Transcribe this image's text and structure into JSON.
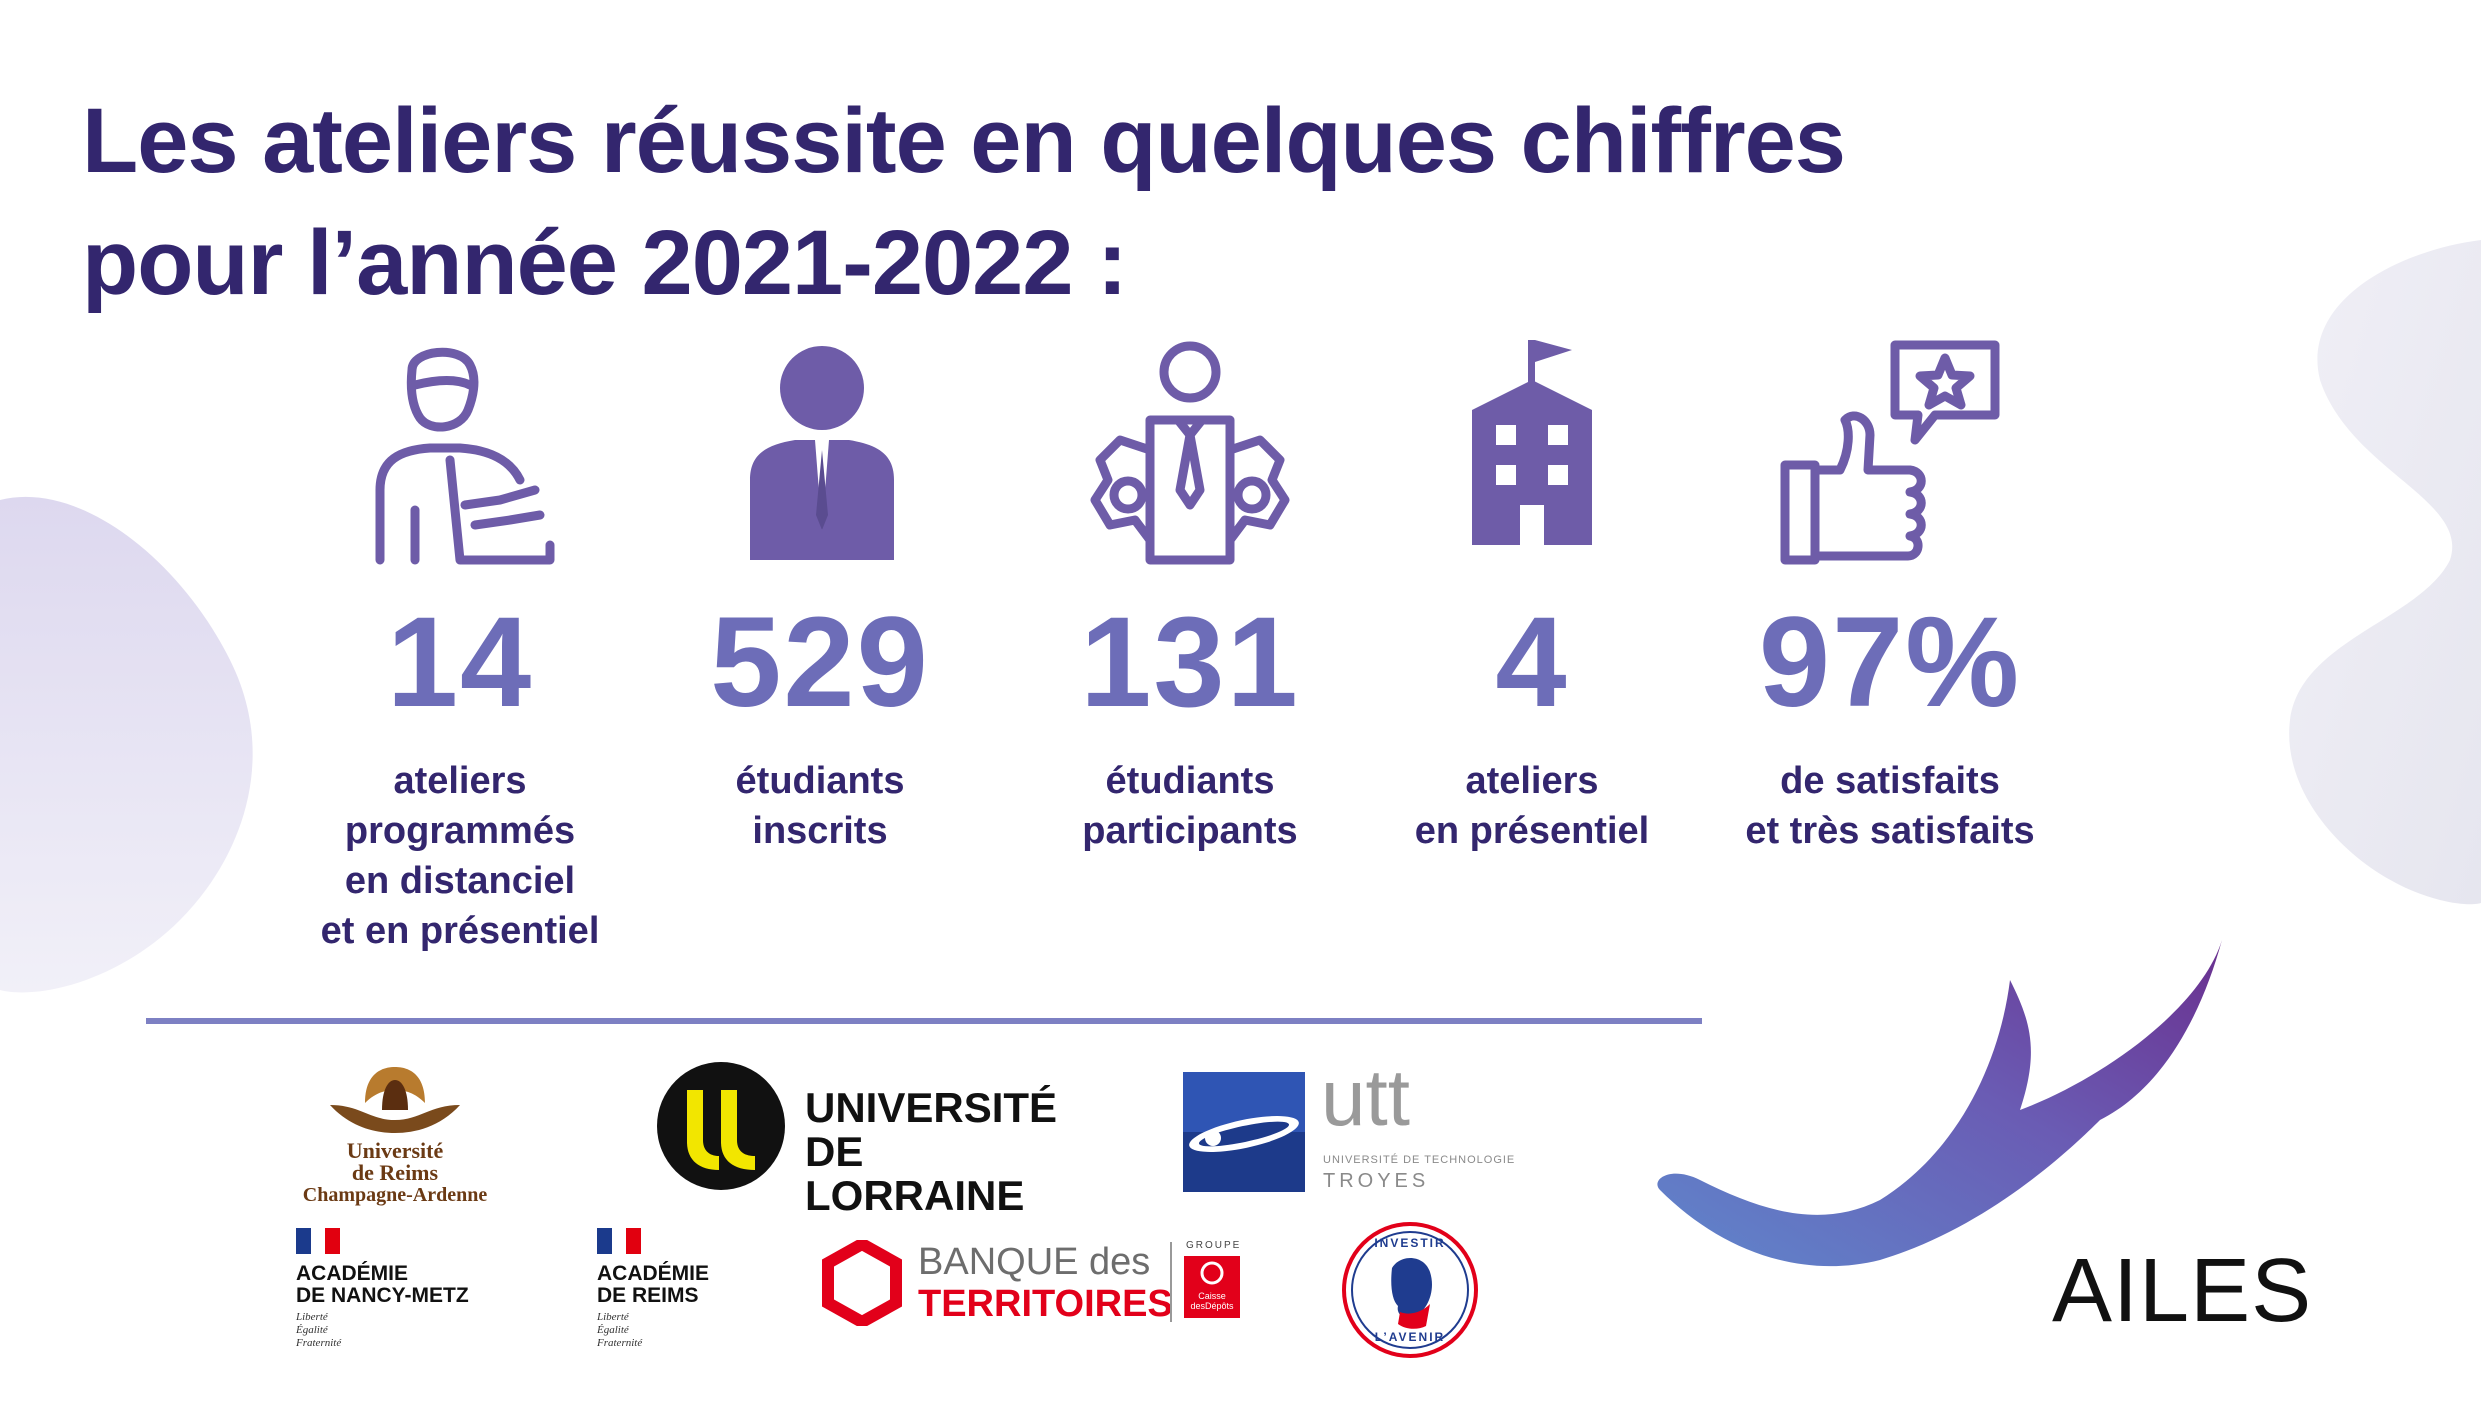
{
  "title": {
    "line1": "Les ateliers réussite en quelques chiffres",
    "line2": "pour l’année 2021-2022 :"
  },
  "stats": [
    {
      "icon": "teacher-laptop-icon",
      "value": "14",
      "label": [
        "ateliers",
        "programmés",
        "en distanciel",
        "et en présentiel"
      ]
    },
    {
      "icon": "student-icon",
      "value": "529",
      "label": [
        "étudiants",
        "inscrits"
      ]
    },
    {
      "icon": "participant-gears-icon",
      "value": "131",
      "label": [
        "étudiants",
        "participants"
      ]
    },
    {
      "icon": "school-building-icon",
      "value": "4",
      "label": [
        "ateliers",
        "en présentiel"
      ]
    },
    {
      "icon": "thumbs-up-star-icon",
      "value": "97%",
      "label": [
        "de satisfaits",
        "et très satisfaits"
      ]
    }
  ],
  "logos": {
    "urca": {
      "line1": "Université",
      "line2": "de Reims",
      "line3": "Champagne-Ardenne"
    },
    "lorraine": {
      "line1": "UNIVERSITÉ",
      "line2": "DE LORRAINE"
    },
    "utt": {
      "name": "utt",
      "sub": "UNIVERSITÉ DE TECHNOLOGIE",
      "city": "TROYES"
    },
    "academie_nm": {
      "line1": "ACADÉMIE",
      "line2": "DE NANCY-METZ",
      "m1": "Liberté",
      "m2": "Égalité",
      "m3": "Fraternité"
    },
    "academie_reims": {
      "line1": "ACADÉMIE",
      "line2": "DE REIMS",
      "m1": "Liberté",
      "m2": "Égalité",
      "m3": "Fraternité"
    },
    "banque": {
      "line1a": "BANQUE",
      "line1b": " des",
      "line2": "TERRITOIRES",
      "groupe": "GROUPE",
      "cdc1": "Caisse",
      "cdc2": "desDépôts"
    },
    "investir": {
      "top": "INVESTIR",
      "bottom": "L’AVENIR"
    },
    "ailes": {
      "text": "AILES"
    }
  },
  "colors": {
    "title": "#33266e",
    "number": "#6d6db8",
    "icon": "#6e5ca8",
    "divider": "#7d80c3"
  }
}
